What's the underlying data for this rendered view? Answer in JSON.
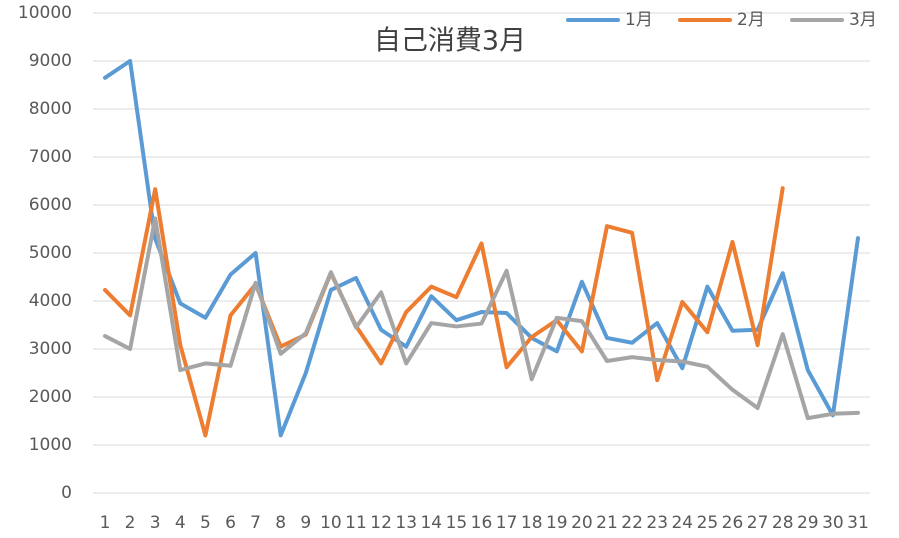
{
  "chart_data": {
    "type": "line",
    "title": "自己消費3月",
    "categories": [
      "1",
      "2",
      "3",
      "4",
      "5",
      "6",
      "7",
      "8",
      "9",
      "10",
      "11",
      "12",
      "13",
      "14",
      "15",
      "16",
      "17",
      "18",
      "19",
      "20",
      "21",
      "22",
      "23",
      "24",
      "25",
      "26",
      "27",
      "28",
      "29",
      "30",
      "31"
    ],
    "series": [
      {
        "name": "1月",
        "color": "#5b9bd5",
        "values": [
          8650,
          9000,
          5300,
          3950,
          3650,
          4550,
          5000,
          1200,
          2500,
          4230,
          4480,
          3400,
          3050,
          4100,
          3600,
          3770,
          3750,
          3230,
          2950,
          4400,
          3230,
          3130,
          3540,
          2600,
          4300,
          3380,
          3400,
          4580,
          2560,
          1620,
          5310
        ]
      },
      {
        "name": "2月",
        "color": "#ed7d31",
        "values": [
          4230,
          3700,
          6330,
          3080,
          1200,
          3700,
          4350,
          3050,
          3300,
          4580,
          3480,
          2700,
          3770,
          4300,
          4080,
          5200,
          2620,
          3250,
          3600,
          2950,
          5560,
          5420,
          2350,
          3980,
          3350,
          5230,
          3080,
          6350,
          null,
          null,
          null
        ]
      },
      {
        "name": "3月",
        "color": "#a5a5a5",
        "values": [
          3270,
          3000,
          5720,
          2560,
          2700,
          2650,
          4380,
          2900,
          3330,
          4600,
          3450,
          4180,
          2700,
          3540,
          3470,
          3530,
          4630,
          2370,
          3650,
          3580,
          2750,
          2830,
          2770,
          2740,
          2630,
          2150,
          1770,
          3310,
          1560,
          1650,
          1670
        ]
      }
    ],
    "ylim": [
      0,
      10000
    ],
    "yticks": [
      0,
      1000,
      2000,
      3000,
      4000,
      5000,
      6000,
      7000,
      8000,
      9000,
      10000
    ],
    "grid": true,
    "legend": "top-right"
  }
}
